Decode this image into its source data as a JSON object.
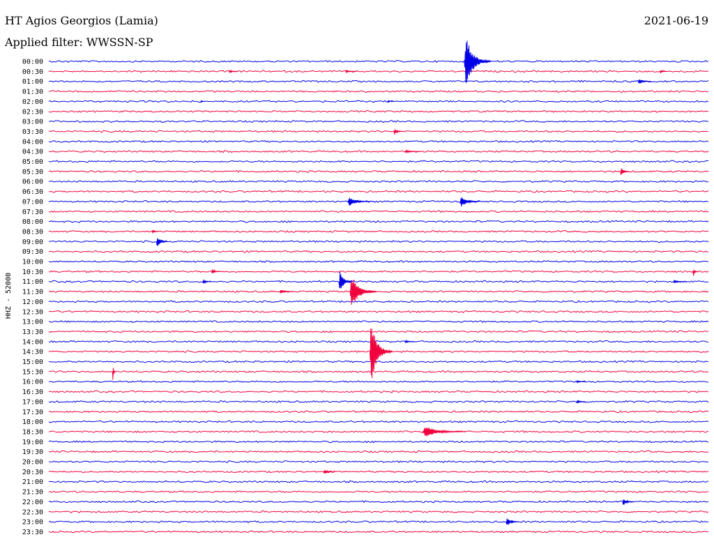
{
  "header": {
    "station": "HT Agios Georgios (Lamia)",
    "filter": "Applied filter: WWSSN-SP",
    "date": "2021-06-19"
  },
  "colors": {
    "even_trace": "#0000e6",
    "odd_trace": "#f0003c"
  },
  "chart_data": {
    "type": "line",
    "title": "HT Agios Georgios (Lamia)",
    "subtitle": "Applied filter: WWSSN-SP",
    "ylabel": "HHZ - 52000",
    "xlabel": "",
    "grid": false,
    "legend": "none",
    "row_labels": [
      "00:00",
      "00:30",
      "01:00",
      "01:30",
      "02:00",
      "02:30",
      "03:00",
      "03:30",
      "04:00",
      "04:30",
      "05:00",
      "05:30",
      "06:00",
      "06:30",
      "07:00",
      "07:30",
      "08:00",
      "08:30",
      "09:00",
      "09:30",
      "10:00",
      "10:30",
      "11:00",
      "11:30",
      "12:00",
      "12:30",
      "13:00",
      "13:30",
      "14:00",
      "14:30",
      "15:00",
      "15:30",
      "16:00",
      "16:30",
      "17:00",
      "17:30",
      "18:00",
      "18:30",
      "19:00",
      "19:30",
      "20:00",
      "20:30",
      "21:00",
      "21:30",
      "22:00",
      "22:30",
      "23:00",
      "23:30"
    ],
    "row_minutes": 30,
    "events": [
      {
        "row": "00:00",
        "minute": 18.9,
        "amplitude": 38,
        "duration_min": 1.2
      },
      {
        "row": "00:30",
        "minute": 8.2,
        "amplitude": 2,
        "duration_min": 0.4
      },
      {
        "row": "00:30",
        "minute": 13.5,
        "amplitude": 2,
        "duration_min": 0.5
      },
      {
        "row": "00:30",
        "minute": 27.8,
        "amplitude": 3,
        "duration_min": 0.3
      },
      {
        "row": "01:00",
        "minute": 26.8,
        "amplitude": 4,
        "duration_min": 0.6
      },
      {
        "row": "02:00",
        "minute": 6.9,
        "amplitude": 2,
        "duration_min": 0.2
      },
      {
        "row": "02:00",
        "minute": 15.4,
        "amplitude": 2,
        "duration_min": 0.3
      },
      {
        "row": "03:30",
        "minute": 15.7,
        "amplitude": 5,
        "duration_min": 0.4
      },
      {
        "row": "04:30",
        "minute": 16.2,
        "amplitude": 2,
        "duration_min": 0.7
      },
      {
        "row": "05:30",
        "minute": 26.0,
        "amplitude": 7,
        "duration_min": 0.4
      },
      {
        "row": "07:00",
        "minute": 13.6,
        "amplitude": 8,
        "duration_min": 1.0
      },
      {
        "row": "07:00",
        "minute": 18.7,
        "amplitude": 9,
        "duration_min": 0.9
      },
      {
        "row": "08:30",
        "minute": 4.7,
        "amplitude": 3,
        "duration_min": 0.3
      },
      {
        "row": "09:00",
        "minute": 4.9,
        "amplitude": 9,
        "duration_min": 0.5
      },
      {
        "row": "10:30",
        "minute": 7.4,
        "amplitude": 4,
        "duration_min": 0.4
      },
      {
        "row": "10:30",
        "minute": 29.3,
        "amplitude": 8,
        "duration_min": 0.2
      },
      {
        "row": "11:00",
        "minute": 7.0,
        "amplitude": 4,
        "duration_min": 0.4
      },
      {
        "row": "11:00",
        "minute": 13.2,
        "amplitude": 18,
        "duration_min": 0.6
      },
      {
        "row": "11:00",
        "minute": 28.4,
        "amplitude": 2,
        "duration_min": 0.6
      },
      {
        "row": "11:30",
        "minute": 10.5,
        "amplitude": 3,
        "duration_min": 0.6
      },
      {
        "row": "11:30",
        "minute": 13.7,
        "amplitude": 26,
        "duration_min": 1.2
      },
      {
        "row": "14:00",
        "minute": 16.2,
        "amplitude": 2,
        "duration_min": 0.4
      },
      {
        "row": "14:30",
        "minute": 14.6,
        "amplitude": 48,
        "duration_min": 1.0
      },
      {
        "row": "15:30",
        "minute": 2.9,
        "amplitude": 17,
        "duration_min": 0.1
      },
      {
        "row": "16:00",
        "minute": 24.0,
        "amplitude": 2,
        "duration_min": 0.4
      },
      {
        "row": "17:00",
        "minute": 24.0,
        "amplitude": 3,
        "duration_min": 0.4
      },
      {
        "row": "18:30",
        "minute": 17.0,
        "amplitude": 8,
        "duration_min": 2.0
      },
      {
        "row": "20:30",
        "minute": 12.5,
        "amplitude": 4,
        "duration_min": 0.5
      },
      {
        "row": "22:00",
        "minute": 26.1,
        "amplitude": 6,
        "duration_min": 0.5
      },
      {
        "row": "23:00",
        "minute": 20.8,
        "amplitude": 7,
        "duration_min": 0.6
      }
    ]
  }
}
